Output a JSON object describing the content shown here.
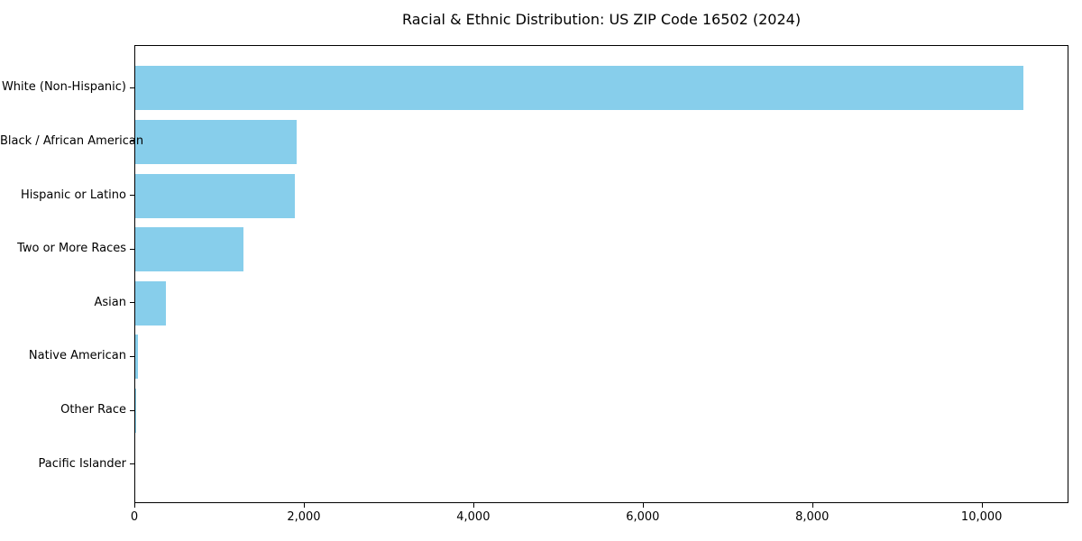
{
  "chart_data": {
    "type": "bar",
    "orientation": "horizontal",
    "title": "Racial & Ethnic Distribution: US ZIP Code 16502 (2024)",
    "categories": [
      "White (Non-Hispanic)",
      "Black / African American",
      "Hispanic or Latino",
      "Two or More Races",
      "Asian",
      "Native American",
      "Other Race",
      "Pacific Islander"
    ],
    "values": [
      10500,
      1910,
      1890,
      1280,
      360,
      30,
      10,
      0
    ],
    "xlabel": "",
    "ylabel": "",
    "xlim": [
      0,
      11025
    ],
    "xticks": [
      {
        "value": 0,
        "label": "0"
      },
      {
        "value": 2000,
        "label": "2,000"
      },
      {
        "value": 4000,
        "label": "4,000"
      },
      {
        "value": 6000,
        "label": "6,000"
      },
      {
        "value": 8000,
        "label": "8,000"
      },
      {
        "value": 10000,
        "label": "10,000"
      }
    ],
    "bar_color": "#87CEEB",
    "text_color": "#000000",
    "grid": false,
    "legend": false
  }
}
